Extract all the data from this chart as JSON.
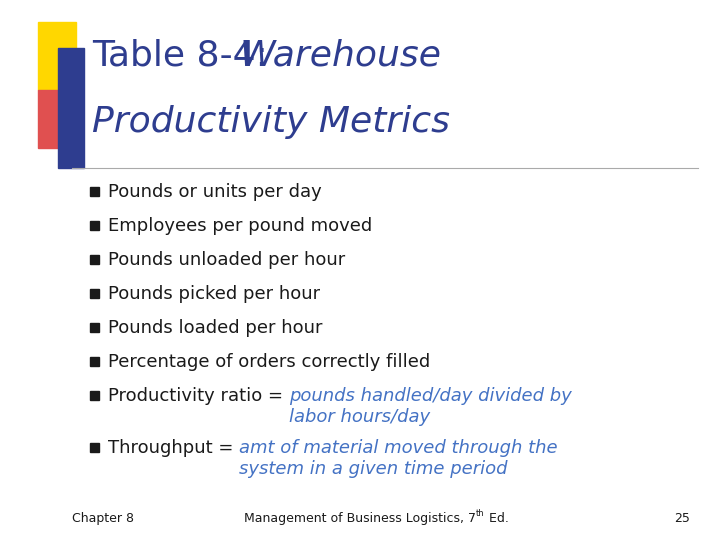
{
  "title_color": "#2E3D8F",
  "title_fontsize": 26,
  "bullet_items": [
    {
      "black_part": "Pounds or units per day",
      "blue_part": ""
    },
    {
      "black_part": "Employees per pound moved",
      "blue_part": ""
    },
    {
      "black_part": "Pounds unloaded per hour",
      "blue_part": ""
    },
    {
      "black_part": "Pounds picked per hour",
      "blue_part": ""
    },
    {
      "black_part": "Pounds loaded per hour",
      "blue_part": ""
    },
    {
      "black_part": "Percentage of orders correctly filled",
      "blue_part": ""
    },
    {
      "black_part": "Productivity ratio = ",
      "blue_part": "pounds handled/day divided by\nlabor hours/day"
    },
    {
      "black_part": "Throughput = ",
      "blue_part": "amt of material moved through the\nsystem in a given time period"
    }
  ],
  "bullet_color": "#1A1A1A",
  "highlight_color": "#4472C4",
  "bullet_fontsize": 13,
  "footer_fontsize": 9,
  "bg_color": "#FFFFFF",
  "title_color_dec": "#2E3D8F",
  "sq_yellow_color": "#FFD700",
  "sq_red_color": "#E05050",
  "sq_blue_color": "#2E3D8F",
  "line_color": "#AAAAAA"
}
